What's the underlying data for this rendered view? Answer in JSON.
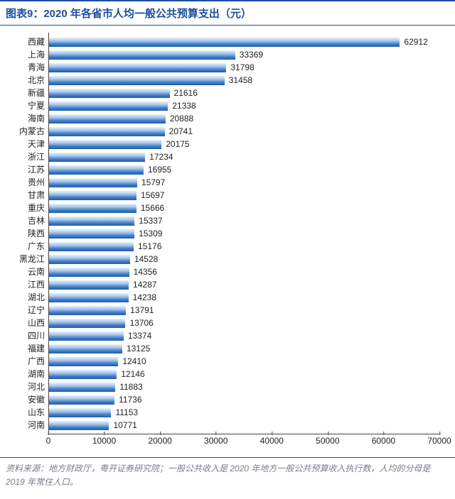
{
  "title": "图表9：2020 年各省市人均一般公共预算支出（元）",
  "source": "资料来源：地方财政厅，粤开证券研究院；一般公共收入是 2020 年地方一般公共预算收入执行数，人均的分母是 2019 年常住人口。",
  "chart": {
    "type": "bar-horizontal",
    "xmin": 0,
    "xmax": 70000,
    "xtick_step": 10000,
    "xticks": [
      0,
      10000,
      20000,
      30000,
      40000,
      50000,
      60000,
      70000
    ],
    "bar_gradient": [
      "#e8f0fb",
      "#a7c6ea",
      "#417fc9",
      "#1f5daa"
    ],
    "axis_color": "#444444",
    "label_fontsize": 12,
    "label_color": "#222222",
    "value_fontsize": 12,
    "value_color": "#222222",
    "background_color": "#ffffff",
    "rows": [
      {
        "name": "西藏",
        "value": 62912
      },
      {
        "name": "上海",
        "value": 33369
      },
      {
        "name": "青海",
        "value": 31798
      },
      {
        "name": "北京",
        "value": 31458
      },
      {
        "name": "新疆",
        "value": 21616
      },
      {
        "name": "宁夏",
        "value": 21338
      },
      {
        "name": "海南",
        "value": 20888
      },
      {
        "name": "内蒙古",
        "value": 20741
      },
      {
        "name": "天津",
        "value": 20175
      },
      {
        "name": "浙江",
        "value": 17234
      },
      {
        "name": "江苏",
        "value": 16955
      },
      {
        "name": "贵州",
        "value": 15797
      },
      {
        "name": "甘肃",
        "value": 15697
      },
      {
        "name": "重庆",
        "value": 15666
      },
      {
        "name": "吉林",
        "value": 15337
      },
      {
        "name": "陕西",
        "value": 15309
      },
      {
        "name": "广东",
        "value": 15176
      },
      {
        "name": "黑龙江",
        "value": 14528
      },
      {
        "name": "云南",
        "value": 14356
      },
      {
        "name": "江西",
        "value": 14287
      },
      {
        "name": "湖北",
        "value": 14238
      },
      {
        "name": "辽宁",
        "value": 13791
      },
      {
        "name": "山西",
        "value": 13706
      },
      {
        "name": "四川",
        "value": 13374
      },
      {
        "name": "福建",
        "value": 13125
      },
      {
        "name": "广西",
        "value": 12410
      },
      {
        "name": "湖南",
        "value": 12146
      },
      {
        "name": "河北",
        "value": 11883
      },
      {
        "name": "安徽",
        "value": 11736
      },
      {
        "name": "山东",
        "value": 11153
      },
      {
        "name": "河南",
        "value": 10771
      }
    ]
  },
  "colors": {
    "brand": "#1f4ea1",
    "muted": "#7c7c8c"
  }
}
